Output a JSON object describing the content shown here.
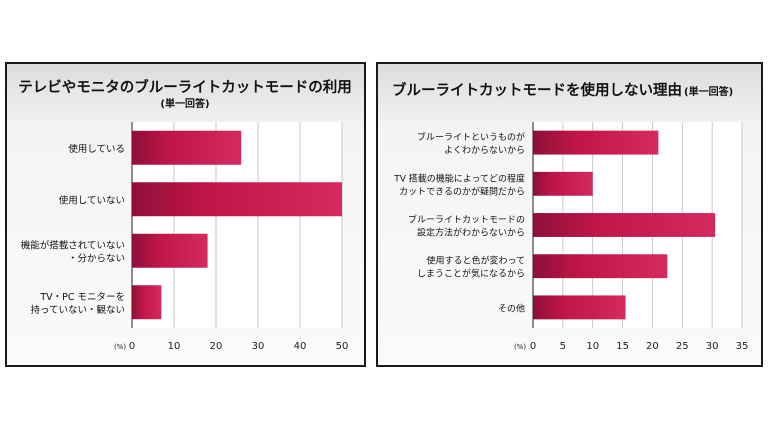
{
  "chart_data": [
    {
      "type": "bar",
      "orientation": "horizontal",
      "title": "テレビやモニタのブルーライトカットモードの利用",
      "subtitle": "(単一回答)",
      "unit_label": "(%)",
      "categories": [
        [
          "使用している"
        ],
        [
          "使用していない"
        ],
        [
          "機能が搭載されていない",
          "・分からない"
        ],
        [
          "TV・PC モニターを",
          "持っていない・観ない"
        ]
      ],
      "values": [
        26,
        50,
        18,
        7
      ],
      "xlim": [
        0,
        50
      ],
      "xticks": [
        0,
        10,
        20,
        30,
        40,
        50
      ],
      "grid": true,
      "bar_color": "#c0154a"
    },
    {
      "type": "bar",
      "orientation": "horizontal",
      "title": "ブルーライトカットモードを使用しない理由",
      "subtitle": "(単一回答)",
      "unit_label": "(%)",
      "categories": [
        [
          "ブルーライトというものが",
          "よくわからないから"
        ],
        [
          "TV 搭載の機能によってどの程度",
          "カットできるのかが疑問だから"
        ],
        [
          "ブルーライトカットモードの",
          "設定方法がわからないから"
        ],
        [
          "使用すると色が変わって",
          "しまうことが気になるから"
        ],
        [
          "その他"
        ]
      ],
      "values": [
        21,
        10,
        30.5,
        22.5,
        15.5
      ],
      "xlim": [
        0,
        35
      ],
      "xticks": [
        0,
        5,
        10,
        15,
        20,
        25,
        30,
        35
      ],
      "grid": true,
      "bar_color": "#c0154a"
    }
  ]
}
